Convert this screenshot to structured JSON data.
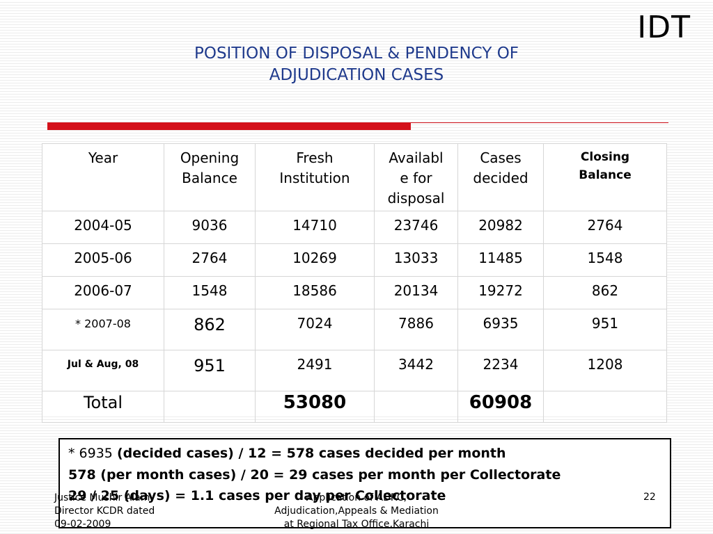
{
  "corner_label": "IDT",
  "title_lines": [
    "POSITION OF DISPOSAL & PENDENCY OF",
    "ADJUDICATION CASES"
  ],
  "table": {
    "headers": {
      "year": "Year",
      "opening_1": "Opening",
      "opening_2": "Balance",
      "fresh_1": "Fresh",
      "fresh_2": "Institution",
      "avail_1": "Availabl",
      "avail_2": "e for",
      "avail_3": "disposal",
      "decided_1": "Cases",
      "decided_2": "decided",
      "closing_1": "Closing",
      "closing_2": "Balance"
    },
    "rows": [
      [
        "2004-05",
        "9036",
        "14710",
        "23746",
        "20982",
        "2764"
      ],
      [
        "2005-06",
        "2764",
        "10269",
        "13033",
        "11485",
        "1548"
      ],
      [
        "2006-07",
        "1548",
        "18586",
        "20134",
        "19272",
        "862"
      ],
      [
        "* 2007-08",
        "862",
        "7024",
        "7886",
        "6935",
        "951"
      ],
      [
        "Jul & Aug, 08",
        "951",
        "2491",
        "3442",
        "2234",
        "1208"
      ]
    ],
    "total": {
      "label": "Total",
      "fresh": "53080",
      "decided": "60908"
    }
  },
  "note": {
    "line1_prefix": "* 6935 ",
    "line1_rest": "(decided cases) /  12  = 578 cases decided per month",
    "line2": " 578 (per month cases) / 20 = 29 cases per month per Collectorate",
    "line3": " 29  / 25 (days)               = 1.1 cases per day per Collectorate"
  },
  "footer": {
    "left_lines": [
      "Justice Mushir Alam",
      "Director KCDR    dated",
      "09-02-2009"
    ],
    "center_lines": [
      "Application of ADRC,",
      "Adjudication,Appeals & Mediation",
      "at Regional Tax Office,Karachi"
    ],
    "page_number": "22"
  }
}
